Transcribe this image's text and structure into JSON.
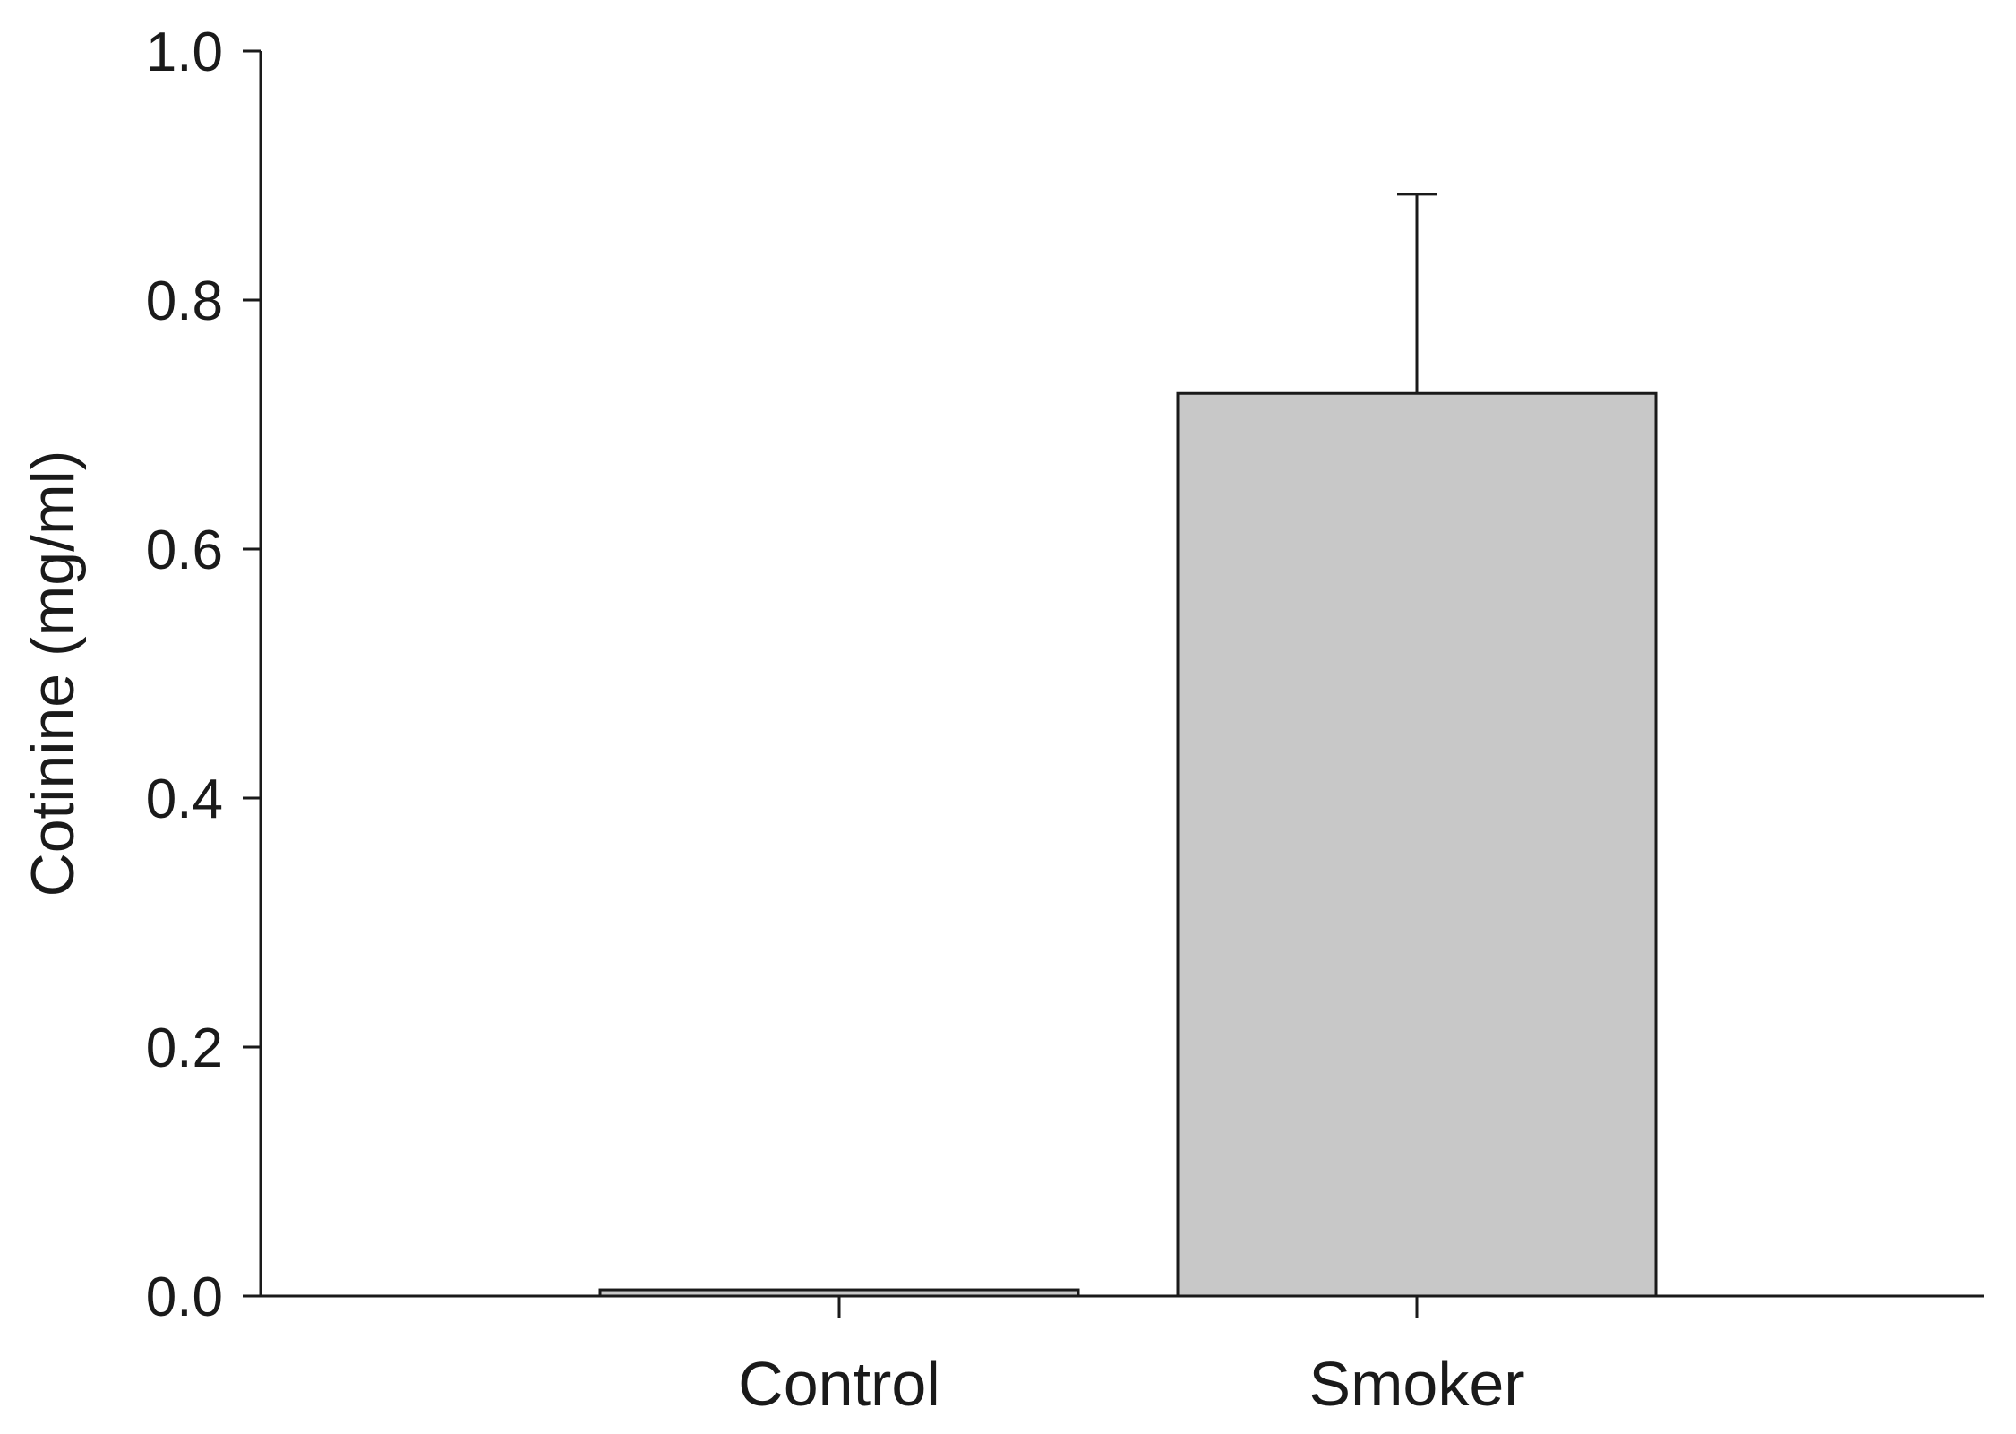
{
  "chart_data": {
    "type": "bar",
    "categories": [
      "Control",
      "Smoker"
    ],
    "values": [
      0.005,
      0.725
    ],
    "error_upper": [
      0.0,
      0.885
    ],
    "ylabel": "Cotinine (mg/ml)",
    "xlabel": "",
    "ylim": [
      0,
      1.0
    ],
    "yticks": [
      "0.0",
      "0.2",
      "0.4",
      "0.6",
      "0.8",
      "1.0"
    ],
    "grid": false,
    "colors": {
      "bar_fill": "#c8c8c8",
      "bar_stroke": "#1a1a1a",
      "axis": "#1a1a1a"
    }
  }
}
